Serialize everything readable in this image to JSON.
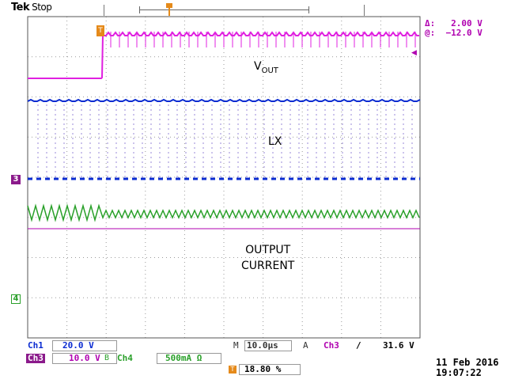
{
  "header": {
    "brand": "Tek",
    "status": "Stop"
  },
  "cursor": {
    "delta_label": "Δ:",
    "delta_value": "2.00 V",
    "at_label": "@:",
    "at_value": "−12.0 V"
  },
  "traces": {
    "vout_label": "V",
    "vout_sub": "OUT",
    "lx_label": "LX",
    "output_label_line1": "OUTPUT",
    "output_label_line2": "CURRENT"
  },
  "markers": {
    "ch3": "3",
    "ch4": "4",
    "trigger": "T"
  },
  "settings": {
    "ch1_label": "Ch1",
    "ch1_scale": "20.0 V",
    "ch3_label": "Ch3",
    "ch3_scale": "10.0 V",
    "ch4_label": "Ch4",
    "ch4_scale": "500mA Ω",
    "bandwidth_icon": "B",
    "horizontal_label": "M",
    "timebase": "10.0µs",
    "trigger_label": "A",
    "trigger_source": "Ch3",
    "trigger_slope": "/",
    "trigger_level": "31.6 V",
    "position": "18.80 %"
  },
  "datetime": {
    "date": "11 Feb  2016",
    "time": "19:07:22"
  },
  "colors": {
    "ch1": "#0a2bd1",
    "ch3": "#e020e0",
    "ch4": "#2aa02a",
    "ch3_dark": "#8b1a8b",
    "trigger": "#e58a1a"
  }
}
